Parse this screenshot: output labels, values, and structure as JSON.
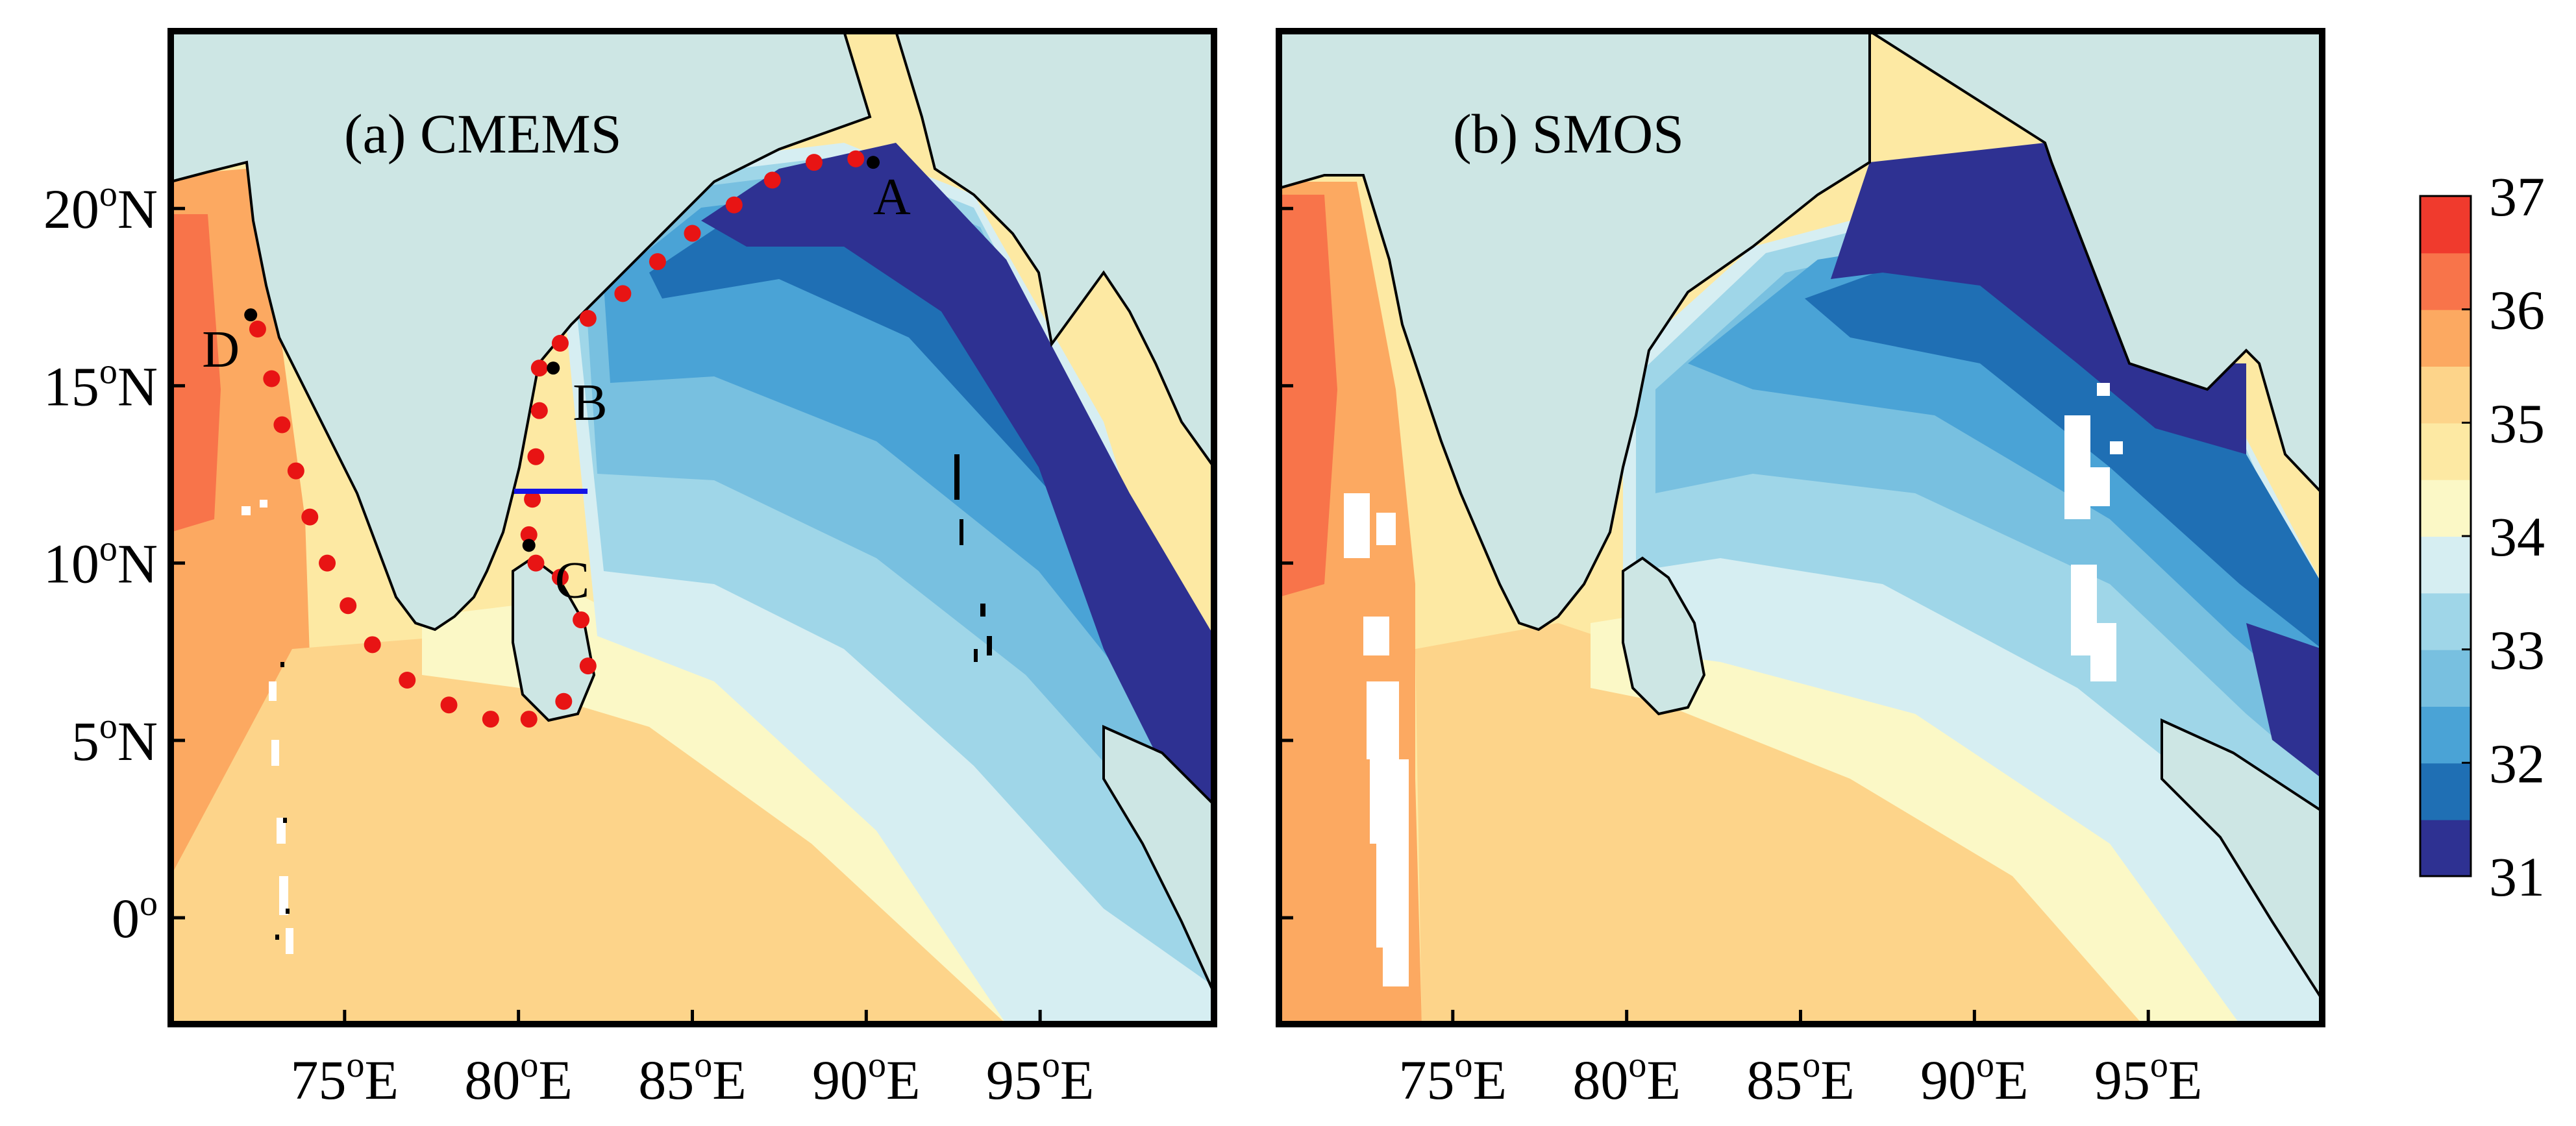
{
  "panels": [
    {
      "id": "a",
      "label": "(a) CMEMS",
      "points": [
        {
          "name": "A",
          "lon": 90.2,
          "lat": 21.3
        },
        {
          "name": "B",
          "lon": 81.0,
          "lat": 15.5
        },
        {
          "name": "C",
          "lon": 80.3,
          "lat": 10.5
        },
        {
          "name": "D",
          "lon": 72.3,
          "lat": 17.0
        }
      ]
    },
    {
      "id": "b",
      "label": "(b) SMOS",
      "points": []
    }
  ],
  "axes": {
    "x_ticks": [
      {
        "value": 75,
        "label": "75",
        "suffix": "E"
      },
      {
        "value": 80,
        "label": "80",
        "suffix": "E"
      },
      {
        "value": 85,
        "label": "85",
        "suffix": "E"
      },
      {
        "value": 90,
        "label": "90",
        "suffix": "E"
      },
      {
        "value": 95,
        "label": "95",
        "suffix": "E"
      }
    ],
    "y_ticks": [
      {
        "value": 20,
        "label": "20",
        "suffix": "N"
      },
      {
        "value": 15,
        "label": "15",
        "suffix": "N"
      },
      {
        "value": 10,
        "label": "10",
        "suffix": "N"
      },
      {
        "value": 5,
        "label": "5",
        "suffix": "N"
      },
      {
        "value": 0,
        "label": "0",
        "suffix": ""
      }
    ],
    "lon_range": [
      70,
      100
    ],
    "lat_range": [
      -3,
      25
    ]
  },
  "colorbar": {
    "levels": [
      31,
      31.5,
      32,
      32.5,
      33,
      33.5,
      34,
      34.5,
      35,
      35.5,
      36,
      36.5,
      37
    ],
    "colors": [
      "#2e3192",
      "#1f6fb4",
      "#4aa3d6",
      "#78c0e0",
      "#9fd6e8",
      "#d6eef2",
      "#fbf8c6",
      "#fde9a3",
      "#fdd48a",
      "#fca961",
      "#f8744a",
      "#f03a2d"
    ],
    "tick_labels": [
      "31",
      "32",
      "33",
      "34",
      "35",
      "36",
      "37"
    ]
  },
  "colors": {
    "land": "#cde6e4",
    "coast": "#000000",
    "track": "#e81414",
    "section": "#1414e6",
    "missing": "#ffffff"
  }
}
